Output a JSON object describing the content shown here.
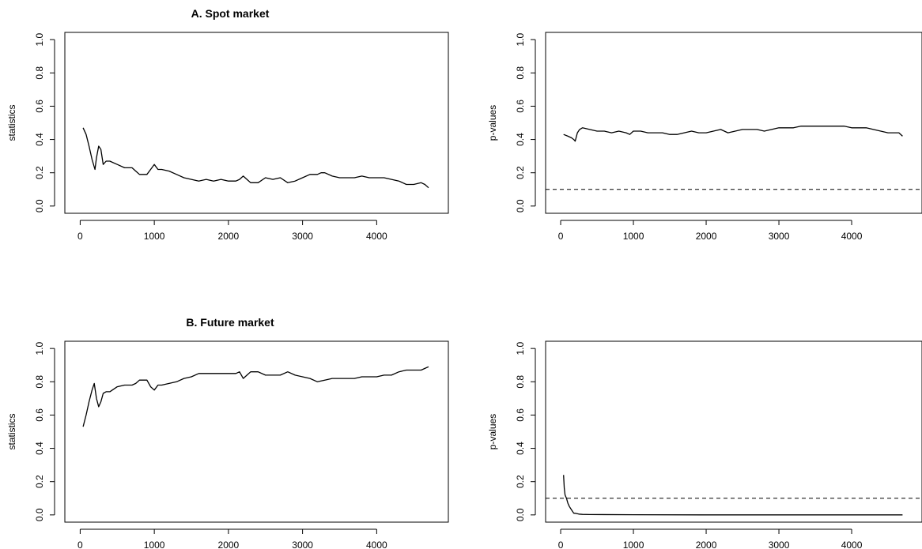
{
  "chart_data": [
    {
      "type": "line",
      "title": "A. Spot market",
      "xlabel": "",
      "ylabel": "statistics",
      "xlim": [
        0,
        4760
      ],
      "ylim": [
        0,
        1
      ],
      "xticks": [
        0,
        1000,
        2000,
        3000,
        4000
      ],
      "yticks": [
        0.0,
        0.2,
        0.4,
        0.6,
        0.8,
        1.0
      ],
      "ytick_labels": [
        "0.0",
        "0.2",
        "0.4",
        "0.6",
        "0.8",
        "1.0"
      ],
      "series": [
        {
          "x": [
            40,
            80,
            120,
            160,
            200,
            220,
            250,
            280,
            310,
            350,
            400,
            500,
            600,
            700,
            750,
            800,
            900,
            950,
            1000,
            1050,
            1100,
            1200,
            1300,
            1400,
            1500,
            1600,
            1700,
            1800,
            1900,
            2000,
            2100,
            2150,
            2200,
            2250,
            2300,
            2350,
            2400,
            2500,
            2600,
            2700,
            2800,
            2900,
            3000,
            3100,
            3200,
            3250,
            3300,
            3400,
            3500,
            3600,
            3700,
            3800,
            3900,
            4000,
            4100,
            4200,
            4300,
            4400,
            4500,
            4600,
            4650,
            4700
          ],
          "y": [
            0.47,
            0.43,
            0.36,
            0.28,
            0.22,
            0.29,
            0.36,
            0.34,
            0.25,
            0.27,
            0.27,
            0.25,
            0.23,
            0.23,
            0.21,
            0.19,
            0.19,
            0.22,
            0.25,
            0.22,
            0.22,
            0.21,
            0.19,
            0.17,
            0.16,
            0.15,
            0.16,
            0.15,
            0.16,
            0.15,
            0.15,
            0.16,
            0.18,
            0.16,
            0.14,
            0.14,
            0.14,
            0.17,
            0.16,
            0.17,
            0.14,
            0.15,
            0.17,
            0.19,
            0.19,
            0.2,
            0.2,
            0.18,
            0.17,
            0.17,
            0.17,
            0.18,
            0.17,
            0.17,
            0.17,
            0.16,
            0.15,
            0.13,
            0.13,
            0.14,
            0.13,
            0.11
          ]
        }
      ]
    },
    {
      "type": "line",
      "title": "",
      "xlabel": "",
      "ylabel": "p-values",
      "xlim": [
        0,
        4760
      ],
      "ylim": [
        0,
        1
      ],
      "xticks": [
        0,
        1000,
        2000,
        3000,
        4000
      ],
      "yticks": [
        0.0,
        0.2,
        0.4,
        0.6,
        0.8,
        1.0
      ],
      "ytick_labels": [
        "0.0",
        "0.2",
        "0.4",
        "0.6",
        "0.8",
        "1.0"
      ],
      "reference_line": 0.1,
      "series": [
        {
          "x": [
            40,
            100,
            150,
            180,
            200,
            230,
            260,
            300,
            400,
            500,
            600,
            700,
            800,
            900,
            950,
            1000,
            1100,
            1200,
            1300,
            1400,
            1500,
            1600,
            1700,
            1800,
            1900,
            2000,
            2100,
            2200,
            2250,
            2300,
            2400,
            2500,
            2600,
            2700,
            2800,
            2900,
            3000,
            3100,
            3200,
            3300,
            3400,
            3500,
            3600,
            3700,
            3800,
            3900,
            4000,
            4100,
            4200,
            4300,
            4400,
            4500,
            4600,
            4650,
            4700
          ],
          "y": [
            0.43,
            0.42,
            0.41,
            0.4,
            0.39,
            0.44,
            0.46,
            0.47,
            0.46,
            0.45,
            0.45,
            0.44,
            0.45,
            0.44,
            0.43,
            0.45,
            0.45,
            0.44,
            0.44,
            0.44,
            0.43,
            0.43,
            0.44,
            0.45,
            0.44,
            0.44,
            0.45,
            0.46,
            0.45,
            0.44,
            0.45,
            0.46,
            0.46,
            0.46,
            0.45,
            0.46,
            0.47,
            0.47,
            0.47,
            0.48,
            0.48,
            0.48,
            0.48,
            0.48,
            0.48,
            0.48,
            0.47,
            0.47,
            0.47,
            0.46,
            0.45,
            0.44,
            0.44,
            0.44,
            0.42
          ]
        }
      ]
    },
    {
      "type": "line",
      "title": "B. Future market",
      "xlabel": "",
      "ylabel": "statistics",
      "xlim": [
        0,
        4760
      ],
      "ylim": [
        0,
        1
      ],
      "xticks": [
        0,
        1000,
        2000,
        3000,
        4000
      ],
      "yticks": [
        0.0,
        0.2,
        0.4,
        0.6,
        0.8,
        1.0
      ],
      "ytick_labels": [
        "0.0",
        "0.2",
        "0.4",
        "0.6",
        "0.8",
        "1.0"
      ],
      "series": [
        {
          "x": [
            40,
            80,
            120,
            160,
            190,
            220,
            250,
            280,
            310,
            350,
            400,
            500,
            600,
            700,
            750,
            800,
            900,
            950,
            1000,
            1050,
            1100,
            1200,
            1300,
            1400,
            1500,
            1600,
            1700,
            1800,
            1900,
            2000,
            2100,
            2150,
            2200,
            2250,
            2300,
            2350,
            2400,
            2500,
            2600,
            2700,
            2800,
            2900,
            3000,
            3100,
            3200,
            3300,
            3400,
            3500,
            3600,
            3700,
            3800,
            3900,
            4000,
            4100,
            4200,
            4300,
            4400,
            4500,
            4600,
            4650,
            4700
          ],
          "y": [
            0.53,
            0.6,
            0.68,
            0.75,
            0.79,
            0.7,
            0.65,
            0.68,
            0.73,
            0.74,
            0.74,
            0.77,
            0.78,
            0.78,
            0.79,
            0.81,
            0.81,
            0.77,
            0.75,
            0.78,
            0.78,
            0.79,
            0.8,
            0.82,
            0.83,
            0.85,
            0.85,
            0.85,
            0.85,
            0.85,
            0.85,
            0.86,
            0.82,
            0.84,
            0.86,
            0.86,
            0.86,
            0.84,
            0.84,
            0.84,
            0.86,
            0.84,
            0.83,
            0.82,
            0.8,
            0.81,
            0.82,
            0.82,
            0.82,
            0.82,
            0.83,
            0.83,
            0.83,
            0.84,
            0.84,
            0.86,
            0.87,
            0.87,
            0.87,
            0.88,
            0.89
          ]
        }
      ]
    },
    {
      "type": "line",
      "title": "",
      "xlabel": "",
      "ylabel": "p-values",
      "xlim": [
        0,
        4760
      ],
      "ylim": [
        0,
        1
      ],
      "xticks": [
        0,
        1000,
        2000,
        3000,
        4000
      ],
      "yticks": [
        0.0,
        0.2,
        0.4,
        0.6,
        0.8,
        1.0
      ],
      "ytick_labels": [
        "0.0",
        "0.2",
        "0.4",
        "0.6",
        "0.8",
        "1.0"
      ],
      "reference_line": 0.1,
      "series": [
        {
          "x": [
            40,
            50,
            60,
            80,
            100,
            120,
            150,
            180,
            200,
            250,
            300,
            400,
            1000,
            2000,
            3000,
            4000,
            4700
          ],
          "y": [
            0.24,
            0.16,
            0.12,
            0.1,
            0.07,
            0.05,
            0.03,
            0.01,
            0.01,
            0.005,
            0.003,
            0.002,
            0.001,
            0.0,
            0.0,
            0.0,
            0.0
          ]
        }
      ]
    }
  ]
}
